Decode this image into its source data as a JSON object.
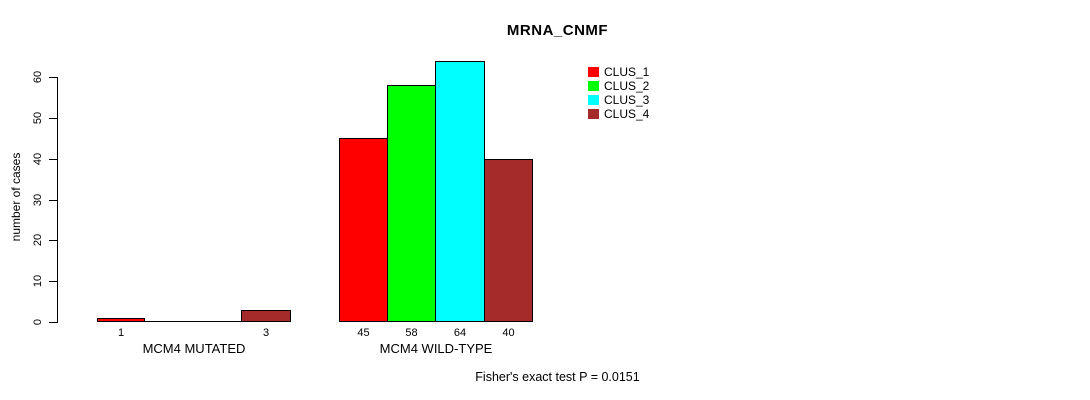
{
  "chart_data": {
    "type": "bar",
    "title": "MRNA_CNMF",
    "ylabel": "number of cases",
    "xlabel": "",
    "ylim": [
      0,
      60
    ],
    "yticks": [
      0,
      10,
      20,
      30,
      40,
      50,
      60
    ],
    "grid": false,
    "legend_position": "top-right",
    "categories": [
      "MCM4 MUTATED",
      "MCM4 WILD-TYPE"
    ],
    "series": [
      {
        "name": "CLUS_1",
        "color": "#FF0000",
        "values": [
          1,
          45
        ]
      },
      {
        "name": "CLUS_2",
        "color": "#00FF00",
        "values": [
          0,
          58
        ]
      },
      {
        "name": "CLUS_3",
        "color": "#00FFFF",
        "values": [
          0,
          64
        ]
      },
      {
        "name": "CLUS_4",
        "color": "#A52A2A",
        "values": [
          3,
          40
        ]
      }
    ],
    "groups": [
      {
        "label": "MCM4 MUTATED",
        "values": [
          1,
          0,
          0,
          3
        ],
        "bar_labels": [
          "1",
          "",
          "",
          "3"
        ]
      },
      {
        "label": "MCM4 WILD-TYPE",
        "values": [
          45,
          58,
          64,
          40
        ],
        "bar_labels": [
          "45",
          "58",
          "64",
          "40"
        ]
      }
    ],
    "footnote": "Fisher's exact test P = 0.0151",
    "colors": {
      "axis": "#000000",
      "bar_border": "#000000",
      "text": "#000000",
      "background": "#FFFFFF"
    }
  }
}
